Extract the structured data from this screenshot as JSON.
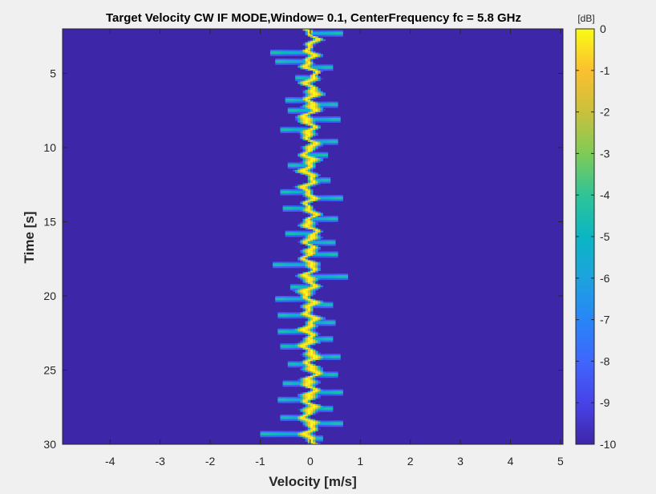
{
  "chart_data": {
    "type": "heatmap",
    "title": "Target Velocity CW IF MODE,Window= 0.1, CenterFrequency fc = 5.8 GHz",
    "xlabel": "Velocity [m/s]",
    "ylabel": "Time [s]",
    "xlim": [
      -4.95,
      5.05
    ],
    "ylim": [
      2,
      30
    ],
    "y_reversed": true,
    "x_ticks": [
      -4,
      -3,
      -2,
      -1,
      0,
      1,
      2,
      3,
      4,
      5
    ],
    "x_tick_labels": [
      "-4",
      "-3",
      "-2",
      "-1",
      "0",
      "1",
      "2",
      "3",
      "4",
      "5"
    ],
    "y_ticks": [
      5,
      10,
      15,
      20,
      25,
      30
    ],
    "y_tick_labels": [
      "5",
      "10",
      "15",
      "20",
      "25",
      "30"
    ],
    "colorbar": {
      "unit": "[dB]",
      "range": [
        -10,
        0
      ],
      "ticks": [
        0,
        -1,
        -2,
        -3,
        -4,
        -5,
        -6,
        -7,
        -8,
        -9,
        -10
      ],
      "tick_labels": [
        "0",
        "-1",
        "-2",
        "-3",
        "-4",
        "-5",
        "-6",
        "-7",
        "-8",
        "-9",
        "-10"
      ],
      "colormap": "parula"
    },
    "background_level_db": -10,
    "time_step_s": 0.1,
    "velocity_bin_m_s": 0.05,
    "trace": [
      {
        "t": 2,
        "v": 0,
        "w": 0.15
      },
      {
        "t": 3,
        "v": 0.05,
        "w": 0.2
      },
      {
        "t": 4,
        "v": -0.05,
        "w": 0.25
      },
      {
        "t": 5,
        "v": 0.05,
        "w": 0.2
      },
      {
        "t": 6,
        "v": 0,
        "w": 0.3
      },
      {
        "t": 7,
        "v": 0.05,
        "w": 0.3
      },
      {
        "t": 8,
        "v": -0.05,
        "w": 0.3
      },
      {
        "t": 9,
        "v": 0,
        "w": 0.25
      },
      {
        "t": 10,
        "v": 0,
        "w": 0.25
      },
      {
        "t": 11,
        "v": -0.05,
        "w": 0.3
      },
      {
        "t": 12,
        "v": 0,
        "w": 0.25
      },
      {
        "t": 13,
        "v": -0.05,
        "w": 0.25
      },
      {
        "t": 14,
        "v": 0,
        "w": 0.2
      },
      {
        "t": 15,
        "v": 0,
        "w": 0.25
      },
      {
        "t": 16,
        "v": 0.05,
        "w": 0.25
      },
      {
        "t": 17,
        "v": -0.05,
        "w": 0.25
      },
      {
        "t": 18,
        "v": 0,
        "w": 0.25
      },
      {
        "t": 19,
        "v": 0,
        "w": 0.3
      },
      {
        "t": 20,
        "v": -0.05,
        "w": 0.3
      },
      {
        "t": 21,
        "v": 0,
        "w": 0.25
      },
      {
        "t": 22,
        "v": 0,
        "w": 0.3
      },
      {
        "t": 23,
        "v": -0.05,
        "w": 0.3
      },
      {
        "t": 24,
        "v": 0,
        "w": 0.3
      },
      {
        "t": 25,
        "v": 0.05,
        "w": 0.3
      },
      {
        "t": 26,
        "v": 0,
        "w": 0.3
      },
      {
        "t": 27,
        "v": 0,
        "w": 0.3
      },
      {
        "t": 28,
        "v": -0.05,
        "w": 0.3
      },
      {
        "t": 29,
        "v": 0,
        "w": 0.3
      },
      {
        "t": 30,
        "v": 0,
        "w": 0.25
      }
    ],
    "excursions": [
      {
        "t": 2.3,
        "v": 0.55
      },
      {
        "t": 3.6,
        "v": -0.7
      },
      {
        "t": 4.2,
        "v": -0.6
      },
      {
        "t": 4.6,
        "v": 0.35
      },
      {
        "t": 5.3,
        "v": -0.2
      },
      {
        "t": 6.8,
        "v": -0.4
      },
      {
        "t": 7.1,
        "v": 0.45
      },
      {
        "t": 7.5,
        "v": -0.35
      },
      {
        "t": 8.1,
        "v": 0.5
      },
      {
        "t": 8.8,
        "v": -0.5
      },
      {
        "t": 9.6,
        "v": 0.45
      },
      {
        "t": 10.5,
        "v": 0.25
      },
      {
        "t": 11.2,
        "v": -0.35
      },
      {
        "t": 12.2,
        "v": 0.3
      },
      {
        "t": 13.0,
        "v": -0.5
      },
      {
        "t": 13.4,
        "v": 0.55
      },
      {
        "t": 14.1,
        "v": -0.45
      },
      {
        "t": 14.8,
        "v": 0.45
      },
      {
        "t": 15.8,
        "v": -0.4
      },
      {
        "t": 16.4,
        "v": 0.4
      },
      {
        "t": 17.2,
        "v": 0.45
      },
      {
        "t": 17.9,
        "v": -0.65
      },
      {
        "t": 18.7,
        "v": 0.65
      },
      {
        "t": 19.4,
        "v": -0.3
      },
      {
        "t": 20.2,
        "v": -0.6
      },
      {
        "t": 20.6,
        "v": 0.35
      },
      {
        "t": 21.3,
        "v": -0.55
      },
      {
        "t": 21.8,
        "v": 0.4
      },
      {
        "t": 22.4,
        "v": -0.55
      },
      {
        "t": 22.9,
        "v": 0.35
      },
      {
        "t": 23.4,
        "v": -0.5
      },
      {
        "t": 24.1,
        "v": 0.5
      },
      {
        "t": 24.6,
        "v": -0.35
      },
      {
        "t": 25.3,
        "v": 0.45
      },
      {
        "t": 25.9,
        "v": -0.45
      },
      {
        "t": 26.5,
        "v": 0.55
      },
      {
        "t": 27.0,
        "v": -0.55
      },
      {
        "t": 27.6,
        "v": 0.35
      },
      {
        "t": 28.2,
        "v": -0.5
      },
      {
        "t": 28.6,
        "v": 0.55
      },
      {
        "t": 29.3,
        "v": -0.9
      },
      {
        "t": 29.6,
        "v": 0.15
      }
    ]
  }
}
